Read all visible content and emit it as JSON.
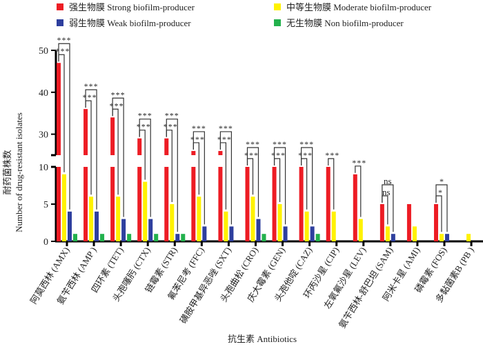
{
  "chart_data": {
    "type": "bar",
    "title": "",
    "xlabel": "抗生素 Antibiotics",
    "ylabel_cn": "耐药菌株数",
    "ylabel_en": "Number of drug-resistant isolates",
    "y_axis_break": {
      "lower_range": [
        0,
        10
      ],
      "upper_range": [
        25,
        50
      ]
    },
    "y_ticks_lower": [
      0,
      5,
      10
    ],
    "y_ticks_upper": [
      30,
      40,
      50
    ],
    "legend_position": "top",
    "categories": [
      "阿莫西林 (AMX)",
      "氨苄西林 (AMP )",
      "四环素 (TET)",
      "头孢噻肟 (CTX)",
      "链霉素 (STR)",
      "氟苯尼考 (FFC)",
      "磺胺甲基异恶唑 (SXT)",
      "头孢曲松 (CRO)",
      "庆大霉素 (GEN)",
      "头孢他啶 (CAZ)",
      "环丙沙星 (CIP)",
      "左氧氟沙星 (LEV)",
      "氨苄西林-舒巴坦 (SAM)",
      "阿米卡星 (AMI)",
      "磷霉素 (FOS)",
      "多黏菌素B (PB )"
    ],
    "series": [
      {
        "name": "强生物膜 Strong biofilm-producer",
        "color": "#ed1c24",
        "values": [
          47,
          36,
          34,
          29,
          29,
          26,
          26,
          10,
          10,
          10,
          10,
          9,
          5,
          5,
          5,
          0
        ]
      },
      {
        "name": "中等生物膜 Moderate biofilm-producer",
        "color": "#fff200",
        "values": [
          9,
          6,
          6,
          8,
          5,
          6,
          4,
          6,
          5,
          4,
          4,
          3,
          2,
          2,
          1,
          1
        ]
      },
      {
        "name": "弱生物膜 Weak biofilm-producer",
        "color": "#2e3f9e",
        "values": [
          4,
          4,
          3,
          3,
          1,
          2,
          2,
          3,
          2,
          2,
          0,
          0,
          1,
          0,
          1,
          0
        ]
      },
      {
        "name": "无生物膜 Non biofilm-producer",
        "color": "#22b14c",
        "values": [
          1,
          1,
          1,
          1,
          1,
          0,
          0,
          1,
          0,
          1,
          0,
          0,
          0,
          0,
          0,
          0
        ]
      }
    ],
    "annotations": [
      {
        "category": 0,
        "from": 0,
        "to": 1,
        "label": "***"
      },
      {
        "category": 0,
        "from": 0,
        "to": 2,
        "label": "***"
      },
      {
        "category": 1,
        "from": 0,
        "to": 1,
        "label": "***"
      },
      {
        "category": 1,
        "from": 0,
        "to": 2,
        "label": "***"
      },
      {
        "category": 2,
        "from": 0,
        "to": 1,
        "label": "***"
      },
      {
        "category": 2,
        "from": 0,
        "to": 2,
        "label": "***"
      },
      {
        "category": 3,
        "from": 0,
        "to": 1,
        "label": "***"
      },
      {
        "category": 3,
        "from": 0,
        "to": 2,
        "label": "***"
      },
      {
        "category": 4,
        "from": 0,
        "to": 1,
        "label": "***"
      },
      {
        "category": 4,
        "from": 0,
        "to": 2,
        "label": "***"
      },
      {
        "category": 5,
        "from": 0,
        "to": 1,
        "label": "***"
      },
      {
        "category": 5,
        "from": 0,
        "to": 2,
        "label": "***"
      },
      {
        "category": 6,
        "from": 0,
        "to": 1,
        "label": "***"
      },
      {
        "category": 6,
        "from": 0,
        "to": 2,
        "label": "***"
      },
      {
        "category": 7,
        "from": 0,
        "to": 1,
        "label": "***"
      },
      {
        "category": 7,
        "from": 0,
        "to": 2,
        "label": "***"
      },
      {
        "category": 8,
        "from": 0,
        "to": 1,
        "label": "***"
      },
      {
        "category": 8,
        "from": 0,
        "to": 2,
        "label": "***"
      },
      {
        "category": 9,
        "from": 0,
        "to": 1,
        "label": "***"
      },
      {
        "category": 9,
        "from": 0,
        "to": 2,
        "label": "***"
      },
      {
        "category": 10,
        "from": 0,
        "to": 1,
        "label": "***"
      },
      {
        "category": 11,
        "from": 0,
        "to": 1,
        "label": "***"
      },
      {
        "category": 12,
        "from": 0,
        "to": 1,
        "label": "ns"
      },
      {
        "category": 12,
        "from": 0,
        "to": 2,
        "label": "ns"
      },
      {
        "category": 14,
        "from": 0,
        "to": 1,
        "label": "*"
      },
      {
        "category": 14,
        "from": 0,
        "to": 2,
        "label": "*"
      }
    ]
  }
}
